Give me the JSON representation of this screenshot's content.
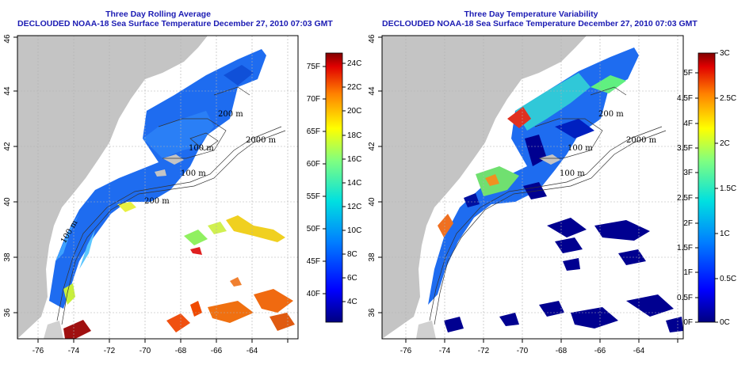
{
  "panels": [
    {
      "id": "avg",
      "title_line1": "Three Day Rolling Average",
      "title_line2": "DECLOUDED NOAA-18 Sea Surface Temperature December 27, 2010 07:03 GMT",
      "x_ticks": [
        "-76",
        "-74",
        "-72",
        "-70",
        "-68",
        "-66",
        "-64"
      ],
      "y_ticks": [
        "36",
        "38",
        "40",
        "42",
        "44",
        "46"
      ],
      "contour_labels": [
        "2000 m",
        "100 m",
        "200 m",
        "200 m",
        "100 m",
        "100 m"
      ],
      "colorbar": {
        "right_labels": [
          "24C",
          "22C",
          "20C",
          "18C",
          "16C",
          "14C",
          "12C",
          "10C",
          "8C",
          "6C",
          "4C"
        ],
        "left_labels": [
          "75F",
          "70F",
          "65F",
          "60F",
          "55F",
          "50F",
          "45F",
          "40F"
        ]
      }
    },
    {
      "id": "var",
      "title_line1": "Three Day Temperature Variability",
      "title_line2": "DECLOUDED NOAA-18 Sea Surface Temperature December 27, 2010 07:03 GMT",
      "x_ticks": [
        "-76",
        "-74",
        "-72",
        "-70",
        "-68",
        "-66",
        "-64"
      ],
      "y_ticks": [
        "36",
        "38",
        "40",
        "42",
        "44",
        "46"
      ],
      "contour_labels": [
        "2000 m",
        "100 m",
        "200 m",
        "100 m"
      ],
      "colorbar": {
        "right_labels": [
          "3C",
          "2.5C",
          "2C",
          "1.5C",
          "1C",
          "0.5C",
          "0C"
        ],
        "left_labels": [
          "5F",
          "4.5F",
          "4F",
          "3.5F",
          "3F",
          "2.5F",
          "2F",
          "1.5F",
          "1F",
          "0.5F",
          "0F"
        ]
      }
    }
  ],
  "colors": {
    "title": "#1b1bb3",
    "land": "#c4c4c4",
    "ocean": "#ffffff"
  }
}
